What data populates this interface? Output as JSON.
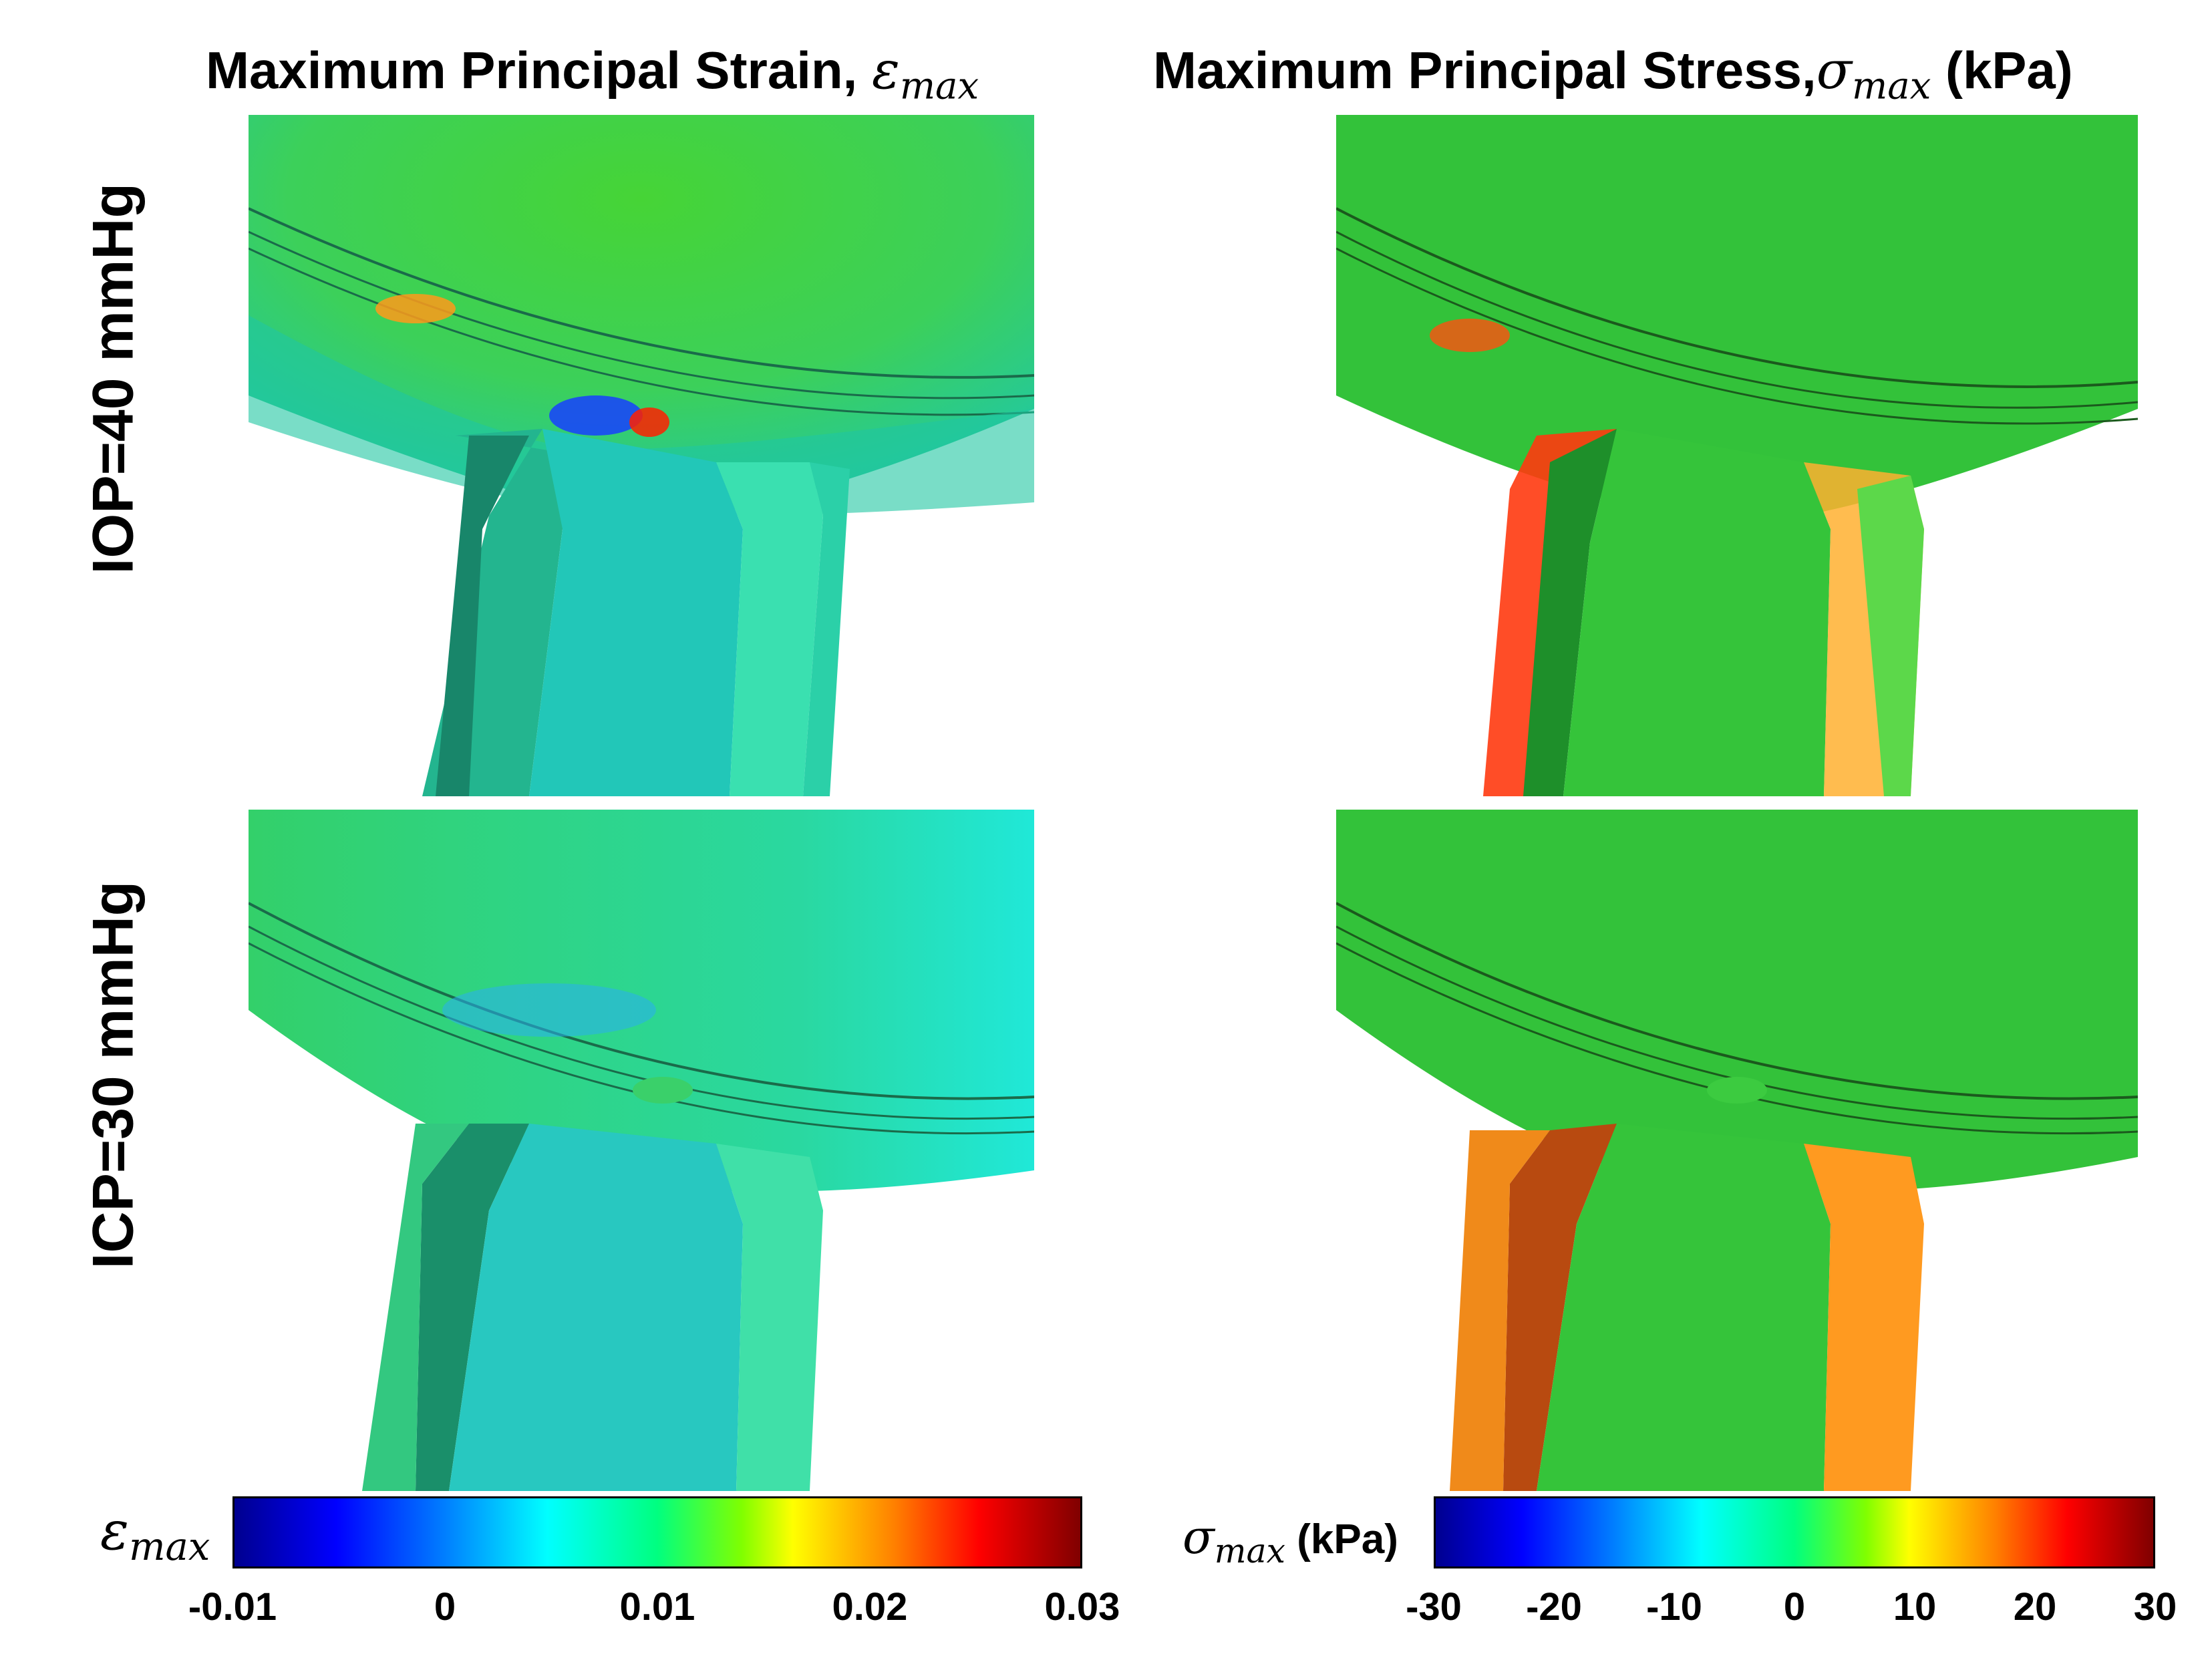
{
  "titles": {
    "strain": "Maximum Principal Strain,",
    "strain_symbol": "ε",
    "strain_sub": "max",
    "stress": "Maximum Principal Stress,",
    "stress_symbol": "σ",
    "stress_sub": "max",
    "stress_unit": "(kPa)"
  },
  "row_labels": {
    "top": "IOP=40 mmHg",
    "bottom": "ICP=30 mmHg"
  },
  "colorbars": {
    "strain": {
      "symbol": "ε",
      "sub": "max",
      "ticks": [
        "-0.01",
        "0",
        "0.01",
        "0.02",
        "0.03"
      ],
      "min": -0.01,
      "max": 0.03
    },
    "stress": {
      "symbol": "σ",
      "sub": "max",
      "unit": "(kPa)",
      "ticks": [
        "-30",
        "-20",
        "-10",
        "0",
        "10",
        "20",
        "30"
      ],
      "min": -30,
      "max": 30
    }
  },
  "colors": {
    "colormap": [
      "#00008f",
      "#0000ff",
      "#0080ff",
      "#00ffff",
      "#00ff80",
      "#80ff00",
      "#ffff00",
      "#ff8000",
      "#ff0000",
      "#800000"
    ]
  }
}
